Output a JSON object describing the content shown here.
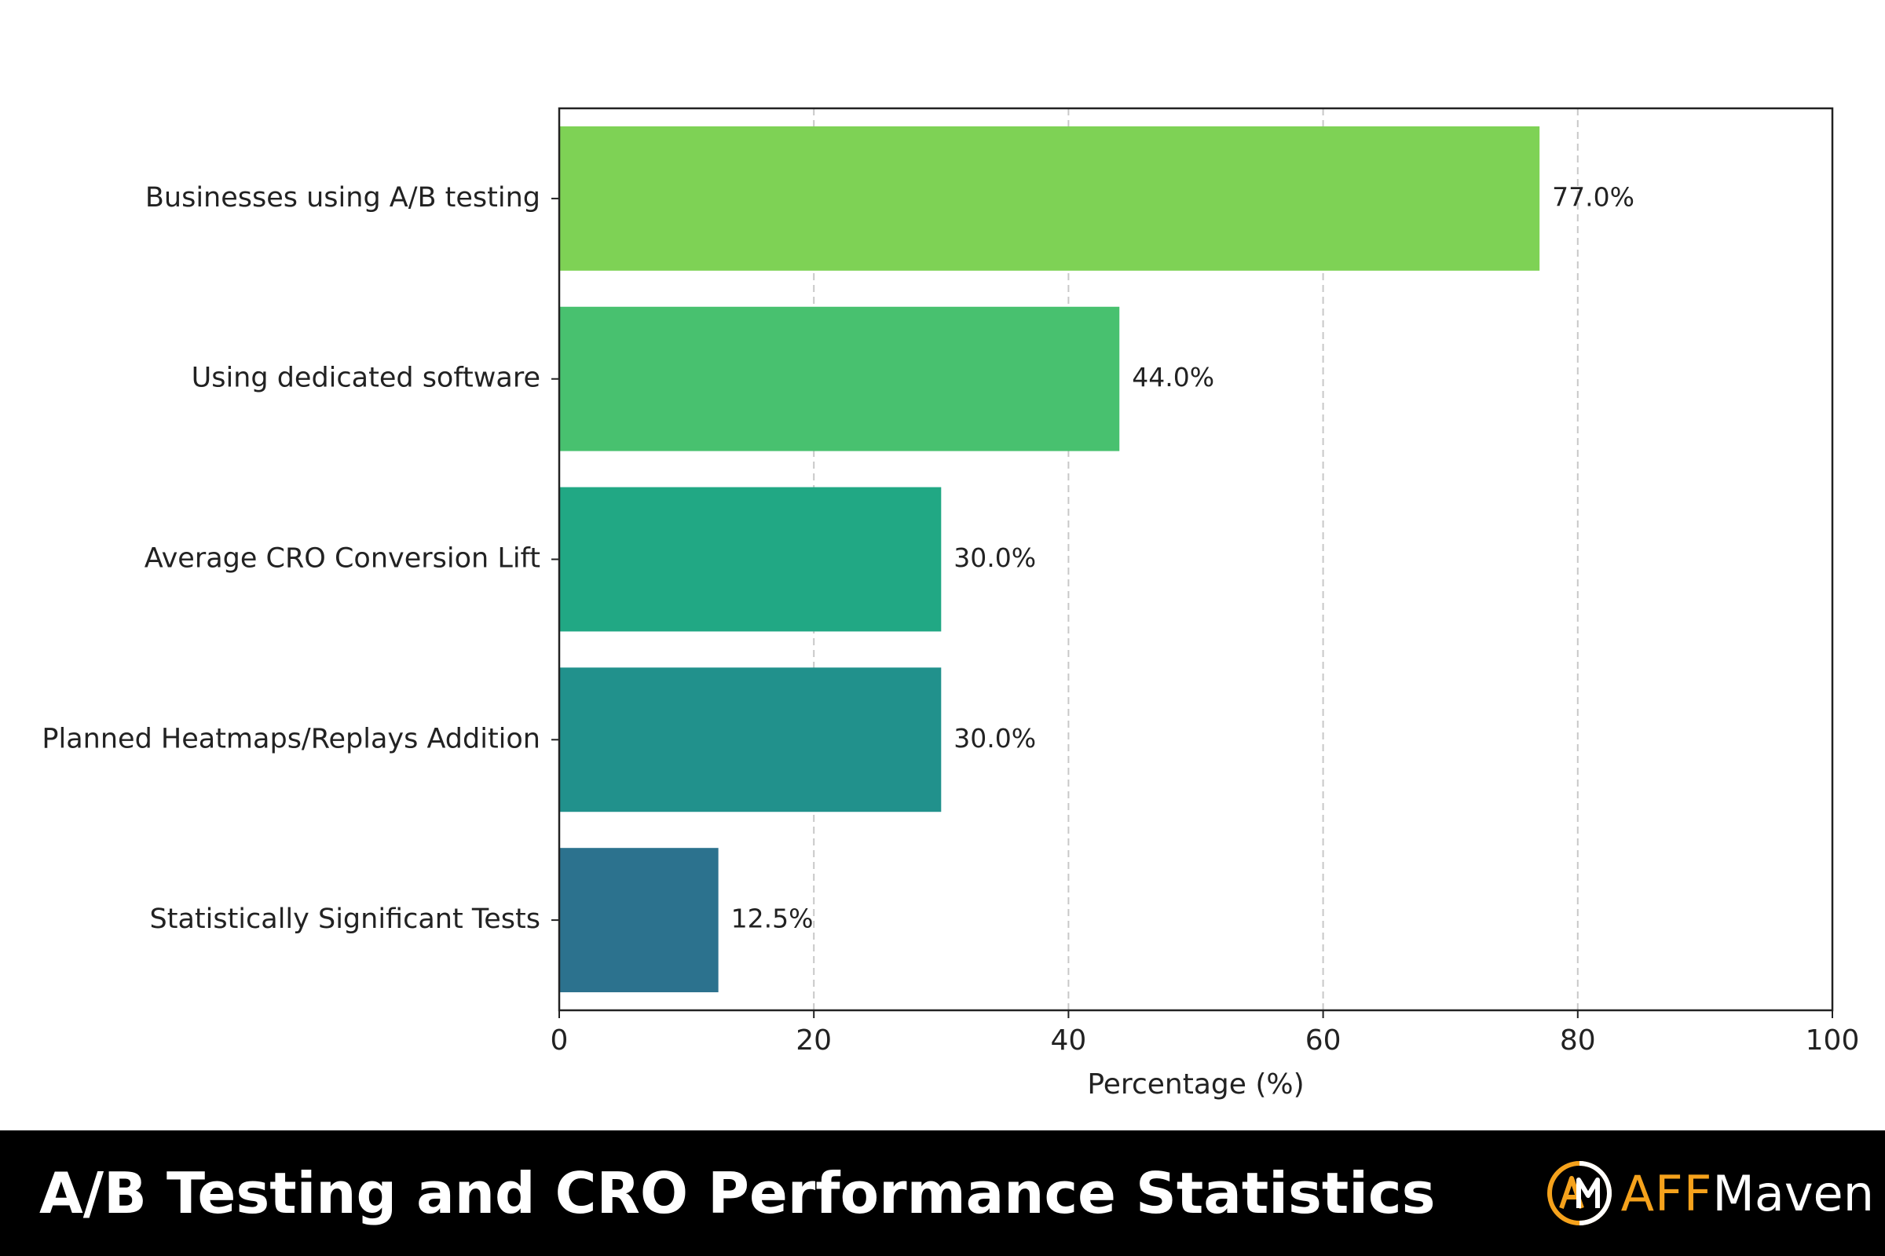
{
  "chart_data": {
    "type": "bar",
    "orientation": "horizontal",
    "categories": [
      "Businesses using A/B testing",
      "Using dedicated software",
      "Average CRO Conversion Lift",
      "Planned Heatmaps/Replays Addition",
      "Statistically Significant Tests"
    ],
    "values": [
      77.0,
      44.0,
      30.0,
      30.0,
      12.5
    ],
    "value_labels": [
      "77.0%",
      "44.0%",
      "30.0%",
      "30.0%",
      "12.5%"
    ],
    "bar_colors": [
      "#7ed255",
      "#48c16f",
      "#21a884",
      "#21918c",
      "#2c728e"
    ],
    "xlabel": "Percentage (%)",
    "ylabel": "",
    "xlim": [
      0,
      100
    ],
    "xticks": [
      "0",
      "20",
      "40",
      "60",
      "80",
      "100"
    ],
    "grid": "vertical dashed",
    "legend": "none"
  },
  "footer": {
    "title": "A/B Testing and CRO Performance Statistics",
    "brand_aff": "AFF",
    "brand_maven": "Maven",
    "brand_mark_icon": "affmaven-logo-icon",
    "accent_color": "#f5a21c",
    "background_color": "#000000"
  }
}
